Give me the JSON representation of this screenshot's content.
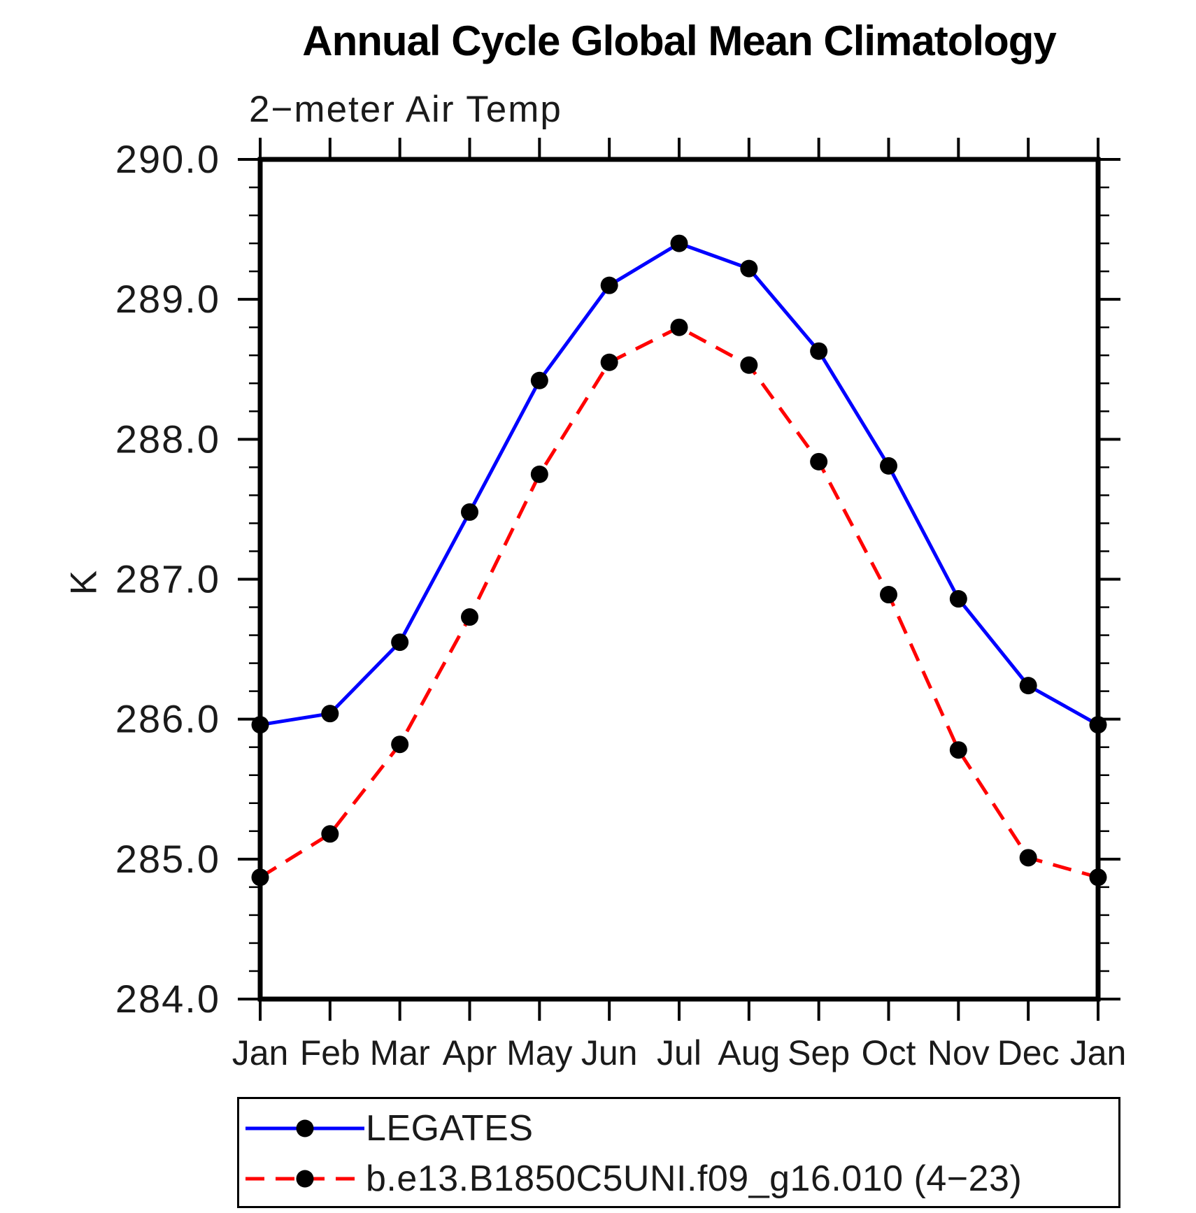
{
  "chart_data": {
    "type": "line",
    "title": "Annual Cycle Global Mean Climatology",
    "subtitle": "2−meter Air Temp",
    "ylabel": "K",
    "xlabel": "",
    "categories": [
      "Jan",
      "Feb",
      "Mar",
      "Apr",
      "May",
      "Jun",
      "Jul",
      "Aug",
      "Sep",
      "Oct",
      "Nov",
      "Dec",
      "Jan"
    ],
    "ylim": [
      284.0,
      290.0
    ],
    "yticks": [
      284.0,
      285.0,
      286.0,
      287.0,
      288.0,
      289.0,
      290.0
    ],
    "ytick_format_decimals": 1,
    "y_minor_step": 0.2,
    "grid": false,
    "legend_position": "bottom",
    "marker_color": "#000000",
    "axis_color": "#000000",
    "series": [
      {
        "name": "LEGATES",
        "color": "#0000ff",
        "style": "solid",
        "marker": "circle",
        "values": [
          285.96,
          286.04,
          286.55,
          287.48,
          288.42,
          289.1,
          289.4,
          289.22,
          288.63,
          287.81,
          286.86,
          286.24,
          285.96
        ]
      },
      {
        "name": "b.e13.B1850C5UNI.f09_g16.010 (4−23)",
        "color": "#ff0000",
        "style": "dashed",
        "marker": "circle",
        "values": [
          284.87,
          285.18,
          285.82,
          286.73,
          287.75,
          288.55,
          288.8,
          288.53,
          287.84,
          286.89,
          285.78,
          285.01,
          284.87
        ]
      }
    ]
  }
}
